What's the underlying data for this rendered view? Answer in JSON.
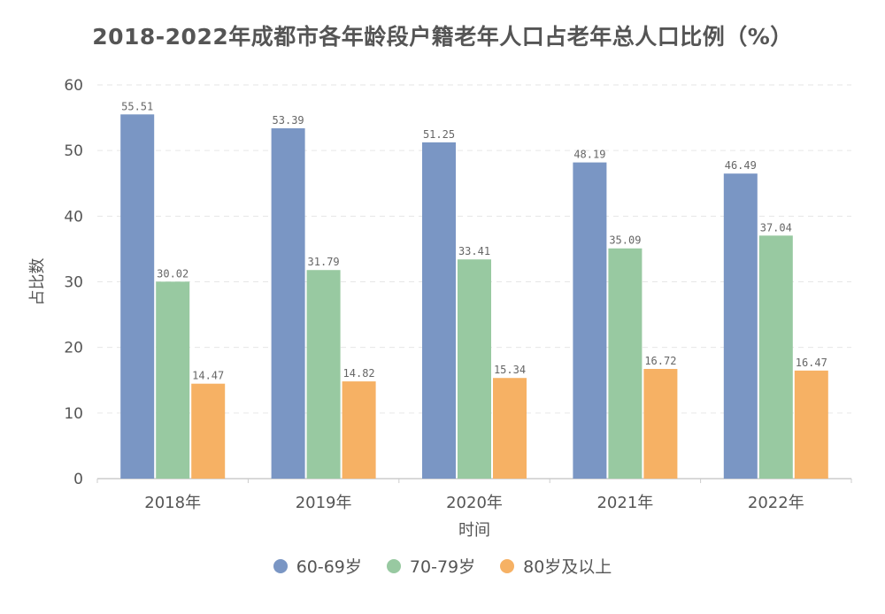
{
  "chart_data": {
    "type": "bar",
    "title": "2018-2022年成都市各年龄段户籍老年人口占老年总人口比例（%）",
    "xlabel": "时间",
    "ylabel": "占比数",
    "ylim": [
      0,
      60
    ],
    "yticks": [
      0,
      10,
      20,
      30,
      40,
      50,
      60
    ],
    "grid": true,
    "legend_position": "bottom",
    "categories": [
      "2018年",
      "2019年",
      "2020年",
      "2021年",
      "2022年"
    ],
    "series": [
      {
        "name": "60-69岁",
        "color": "#7a96c4",
        "values": [
          55.51,
          53.39,
          51.25,
          48.19,
          46.49
        ],
        "labels": [
          "55.51",
          "53.39",
          "51.25",
          "48.19",
          "46.49"
        ]
      },
      {
        "name": "70-79岁",
        "color": "#98c9a1",
        "values": [
          30.02,
          31.79,
          33.41,
          35.09,
          37.04
        ],
        "labels": [
          "30.02",
          "31.79",
          "33.41",
          "35.09",
          "37.04"
        ]
      },
      {
        "name": "80岁及以上",
        "color": "#f6b164",
        "values": [
          14.47,
          14.82,
          15.34,
          16.72,
          16.47
        ],
        "labels": [
          "14.47",
          "14.82",
          "15.34",
          "16.72",
          "16.47"
        ]
      }
    ]
  }
}
